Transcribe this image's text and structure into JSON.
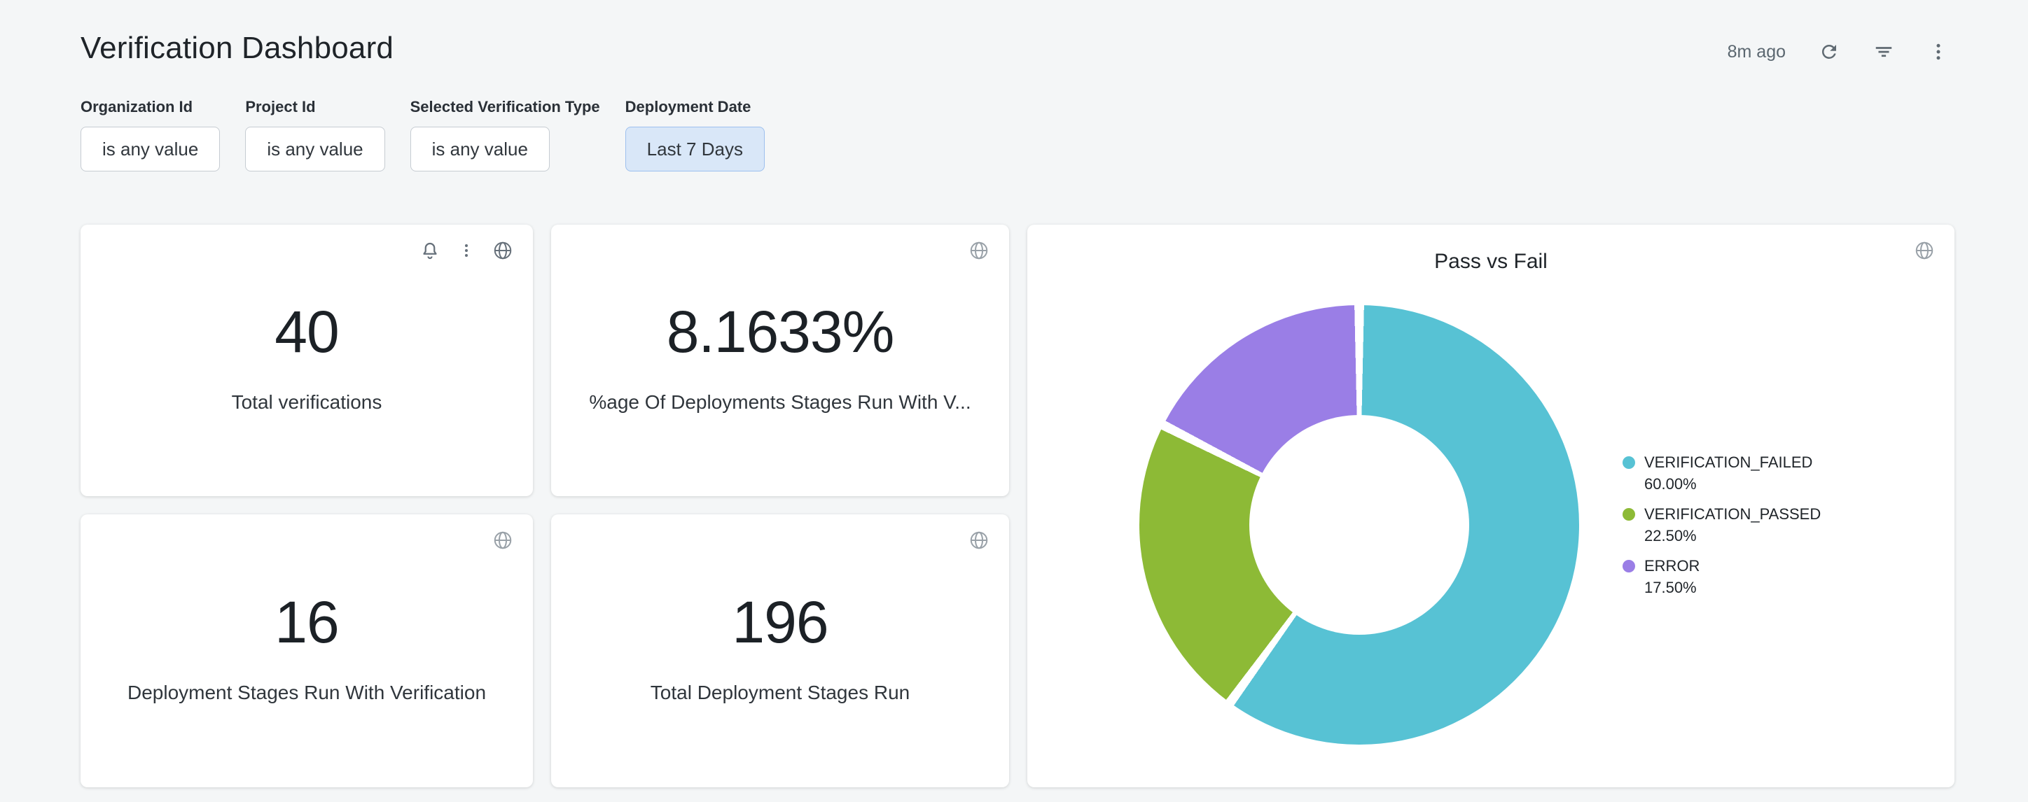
{
  "header": {
    "title": "Verification Dashboard",
    "last_refreshed": "8m ago",
    "icons": [
      "refresh-icon",
      "filter-icon",
      "kebab-menu-icon"
    ]
  },
  "filters": [
    {
      "label": "Organization Id",
      "value": "is any value",
      "active": false
    },
    {
      "label": "Project Id",
      "value": "is any value",
      "active": false
    },
    {
      "label": "Selected Verification Type",
      "value": "is any value",
      "active": false
    },
    {
      "label": "Deployment Date",
      "value": "Last 7 Days",
      "active": true
    }
  ],
  "stat_cards": [
    {
      "id": "total-verifications",
      "value": "40",
      "label": "Total verifications",
      "icons": [
        "bell-icon",
        "kebab-menu-icon",
        "globe-icon"
      ]
    },
    {
      "id": "pct-deployment-stages-with-verification",
      "value": "8.1633%",
      "label": "%age Of Deployments Stages Run With V...",
      "icons": [
        "globe-icon"
      ]
    },
    {
      "id": "deployment-stages-run-with-verification",
      "value": "16",
      "label": "Deployment Stages Run With Verification",
      "icons": [
        "globe-icon"
      ]
    },
    {
      "id": "total-deployment-stages-run",
      "value": "196",
      "label": "Total Deployment Stages Run",
      "icons": [
        "globe-icon"
      ]
    }
  ],
  "chart_data": {
    "type": "pie",
    "donut": true,
    "title": "Pass vs Fail",
    "labels": [
      "VERIFICATION_FAILED",
      "VERIFICATION_PASSED",
      "ERROR"
    ],
    "values": [
      60.0,
      22.5,
      17.5
    ],
    "value_labels": [
      "60.00%",
      "22.50%",
      "17.50%"
    ],
    "colors": [
      "#57c2d4",
      "#8dba36",
      "#9a7ee6"
    ],
    "legend_position": "right",
    "start_angle_deg": 0,
    "direction": "clockwise"
  },
  "colors": {
    "page_background": "#f4f6f7",
    "card_background": "#ffffff",
    "active_filter_background": "#d9e7f8",
    "active_filter_border": "#9dc0ee",
    "text_primary": "#1f2429",
    "text_secondary": "#5b6770"
  }
}
